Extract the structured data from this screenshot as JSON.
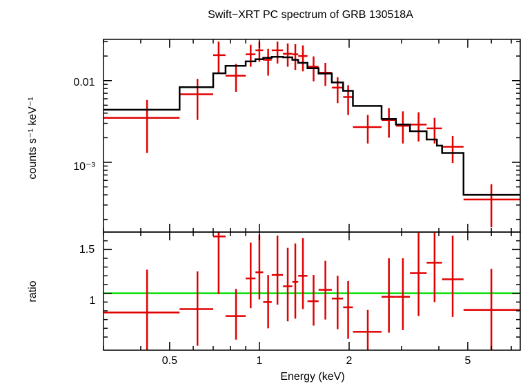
{
  "title": "Swift−XRT PC spectrum of GRB 130518A",
  "colors": {
    "data": "#e00000",
    "model": "#000000",
    "unity": "#00e000",
    "axes": "#000000"
  },
  "chart_data": [
    {
      "type": "line",
      "panel": "spectrum",
      "ylabel": "counts s⁻¹ keV⁻¹",
      "xscale": "log",
      "yscale": "log",
      "xlim": [
        0.3,
        7.5
      ],
      "ylim": [
        0.00014,
        0.032
      ],
      "yticklabels": [
        "0.01",
        "10⁻³"
      ],
      "yticks": [
        0.01,
        0.001
      ],
      "data": [
        {
          "x": 0.42,
          "xlo": 0.3,
          "xhi": 0.54,
          "y": 0.0035,
          "ylo": 0.0013,
          "yhi": 0.0058
        },
        {
          "x": 0.62,
          "xlo": 0.54,
          "xhi": 0.7,
          "y": 0.0068,
          "ylo": 0.0033,
          "yhi": 0.0105
        },
        {
          "x": 0.73,
          "xlo": 0.7,
          "xhi": 0.77,
          "y": 0.0205,
          "ylo": 0.0125,
          "yhi": 0.03
        },
        {
          "x": 0.835,
          "xlo": 0.77,
          "xhi": 0.9,
          "y": 0.0115,
          "ylo": 0.0073,
          "yhi": 0.016
        },
        {
          "x": 0.935,
          "xlo": 0.9,
          "xhi": 0.97,
          "y": 0.021,
          "ylo": 0.0148,
          "yhi": 0.0275
        },
        {
          "x": 1.0,
          "xlo": 0.97,
          "xhi": 1.03,
          "y": 0.0235,
          "ylo": 0.017,
          "yhi": 0.03
        },
        {
          "x": 1.07,
          "xlo": 1.03,
          "xhi": 1.1,
          "y": 0.018,
          "ylo": 0.0115,
          "yhi": 0.0245
        },
        {
          "x": 1.15,
          "xlo": 1.1,
          "xhi": 1.2,
          "y": 0.0235,
          "ylo": 0.0162,
          "yhi": 0.03
        },
        {
          "x": 1.245,
          "xlo": 1.2,
          "xhi": 1.29,
          "y": 0.0213,
          "ylo": 0.0148,
          "yhi": 0.0285
        },
        {
          "x": 1.32,
          "xlo": 1.29,
          "xhi": 1.35,
          "y": 0.021,
          "ylo": 0.0135,
          "yhi": 0.028
        },
        {
          "x": 1.4,
          "xlo": 1.35,
          "xhi": 1.45,
          "y": 0.02,
          "ylo": 0.013,
          "yhi": 0.027
        },
        {
          "x": 1.52,
          "xlo": 1.45,
          "xhi": 1.58,
          "y": 0.0148,
          "ylo": 0.0098,
          "yhi": 0.0198
        },
        {
          "x": 1.665,
          "xlo": 1.58,
          "xhi": 1.75,
          "y": 0.0125,
          "ylo": 0.0086,
          "yhi": 0.0165
        },
        {
          "x": 1.83,
          "xlo": 1.75,
          "xhi": 1.91,
          "y": 0.0082,
          "ylo": 0.0053,
          "yhi": 0.011
        },
        {
          "x": 1.985,
          "xlo": 1.91,
          "xhi": 2.06,
          "y": 0.0063,
          "ylo": 0.0038,
          "yhi": 0.0088
        },
        {
          "x": 2.31,
          "xlo": 2.06,
          "xhi": 2.57,
          "y": 0.0027,
          "ylo": 0.0017,
          "yhi": 0.0038
        },
        {
          "x": 2.72,
          "xlo": 2.57,
          "xhi": 2.87,
          "y": 0.0033,
          "ylo": 0.002,
          "yhi": 0.0046
        },
        {
          "x": 3.03,
          "xlo": 2.87,
          "xhi": 3.2,
          "y": 0.0028,
          "ylo": 0.0017,
          "yhi": 0.0042
        },
        {
          "x": 3.42,
          "xlo": 3.2,
          "xhi": 3.64,
          "y": 0.0029,
          "ylo": 0.0018,
          "yhi": 0.0041
        },
        {
          "x": 3.87,
          "xlo": 3.64,
          "xhi": 4.1,
          "y": 0.0026,
          "ylo": 0.0017,
          "yhi": 0.0035
        },
        {
          "x": 4.45,
          "xlo": 4.1,
          "xhi": 4.84,
          "y": 0.00155,
          "ylo": 0.00098,
          "yhi": 0.0021
        },
        {
          "x": 6.0,
          "xlo": 4.84,
          "xhi": 7.5,
          "y": 0.00035,
          "ylo": 0.00016,
          "yhi": 0.00054
        }
      ],
      "model": {
        "edges": [
          0.3,
          0.54,
          0.7,
          0.77,
          0.9,
          0.97,
          1.03,
          1.1,
          1.2,
          1.29,
          1.35,
          1.45,
          1.58,
          1.75,
          1.91,
          2.06,
          2.57,
          2.87,
          3.2,
          3.64,
          3.94,
          4.1,
          4.84,
          7.5
        ],
        "values": [
          0.0044,
          0.0083,
          0.0123,
          0.0152,
          0.0172,
          0.0183,
          0.019,
          0.0196,
          0.0193,
          0.018,
          0.0165,
          0.0142,
          0.0122,
          0.0095,
          0.0075,
          0.0049,
          0.0034,
          0.0029,
          0.0024,
          0.0019,
          0.0016,
          0.0013,
          0.0004
        ]
      }
    },
    {
      "type": "line",
      "panel": "ratio",
      "xlabel": "Energy (keV)",
      "ylabel": "ratio",
      "xscale": "log",
      "xlim": [
        0.3,
        7.5
      ],
      "ylim": [
        0.35,
        1.7
      ],
      "xticks": [
        0.5,
        1,
        2,
        5
      ],
      "xticklabels": [
        "0.5",
        "1",
        "2",
        "5"
      ],
      "yticks": [
        1,
        1.5
      ],
      "yticklabels": [
        "1",
        "1.5"
      ],
      "reference_line": 1,
      "data": [
        {
          "x": 0.42,
          "xlo": 0.3,
          "xhi": 0.54,
          "y": 0.78,
          "ylo": 0.29,
          "yhi": 1.27
        },
        {
          "x": 0.62,
          "xlo": 0.54,
          "xhi": 0.7,
          "y": 0.82,
          "ylo": 0.4,
          "yhi": 1.25
        },
        {
          "x": 0.73,
          "xlo": 0.7,
          "xhi": 0.77,
          "y": 1.65,
          "ylo": 0.99,
          "yhi": 2.3
        },
        {
          "x": 0.835,
          "xlo": 0.77,
          "xhi": 0.9,
          "y": 0.74,
          "ylo": 0.47,
          "yhi": 1.05
        },
        {
          "x": 0.935,
          "xlo": 0.9,
          "xhi": 0.97,
          "y": 1.17,
          "ylo": 0.83,
          "yhi": 1.58
        },
        {
          "x": 1.0,
          "xlo": 0.97,
          "xhi": 1.03,
          "y": 1.24,
          "ylo": 0.93,
          "yhi": 1.67
        },
        {
          "x": 1.07,
          "xlo": 1.03,
          "xhi": 1.1,
          "y": 0.9,
          "ylo": 0.6,
          "yhi": 1.21
        },
        {
          "x": 1.15,
          "xlo": 1.1,
          "xhi": 1.2,
          "y": 1.21,
          "ylo": 0.87,
          "yhi": 1.66
        },
        {
          "x": 1.245,
          "xlo": 1.2,
          "xhi": 1.29,
          "y": 1.08,
          "ylo": 0.68,
          "yhi": 1.52
        },
        {
          "x": 1.32,
          "xlo": 1.29,
          "xhi": 1.35,
          "y": 1.13,
          "ylo": 0.71,
          "yhi": 1.57
        },
        {
          "x": 1.4,
          "xlo": 1.35,
          "xhi": 1.45,
          "y": 1.2,
          "ylo": 0.82,
          "yhi": 1.63
        },
        {
          "x": 1.52,
          "xlo": 1.45,
          "xhi": 1.58,
          "y": 0.91,
          "ylo": 0.63,
          "yhi": 1.21
        },
        {
          "x": 1.665,
          "xlo": 1.58,
          "xhi": 1.75,
          "y": 1.04,
          "ylo": 0.7,
          "yhi": 1.37
        },
        {
          "x": 1.83,
          "xlo": 1.75,
          "xhi": 1.91,
          "y": 0.94,
          "ylo": 0.59,
          "yhi": 1.2
        },
        {
          "x": 1.985,
          "xlo": 1.91,
          "xhi": 2.06,
          "y": 0.84,
          "ylo": 0.48,
          "yhi": 1.14
        },
        {
          "x": 2.31,
          "xlo": 2.06,
          "xhi": 2.57,
          "y": 0.56,
          "ylo": 0.35,
          "yhi": 0.81
        },
        {
          "x": 2.72,
          "xlo": 2.57,
          "xhi": 2.87,
          "y": 0.96,
          "ylo": 0.55,
          "yhi": 1.4
        },
        {
          "x": 3.03,
          "xlo": 2.87,
          "xhi": 3.2,
          "y": 0.96,
          "ylo": 0.58,
          "yhi": 1.4
        },
        {
          "x": 3.42,
          "xlo": 3.2,
          "xhi": 3.64,
          "y": 1.23,
          "ylo": 0.74,
          "yhi": 1.73
        },
        {
          "x": 3.87,
          "xlo": 3.64,
          "xhi": 4.1,
          "y": 1.35,
          "ylo": 0.9,
          "yhi": 1.7
        },
        {
          "x": 4.45,
          "xlo": 4.1,
          "xhi": 4.84,
          "y": 1.16,
          "ylo": 0.73,
          "yhi": 1.66
        },
        {
          "x": 6.0,
          "xlo": 4.84,
          "xhi": 7.5,
          "y": 0.81,
          "ylo": 0.35,
          "yhi": 1.28
        }
      ]
    }
  ]
}
